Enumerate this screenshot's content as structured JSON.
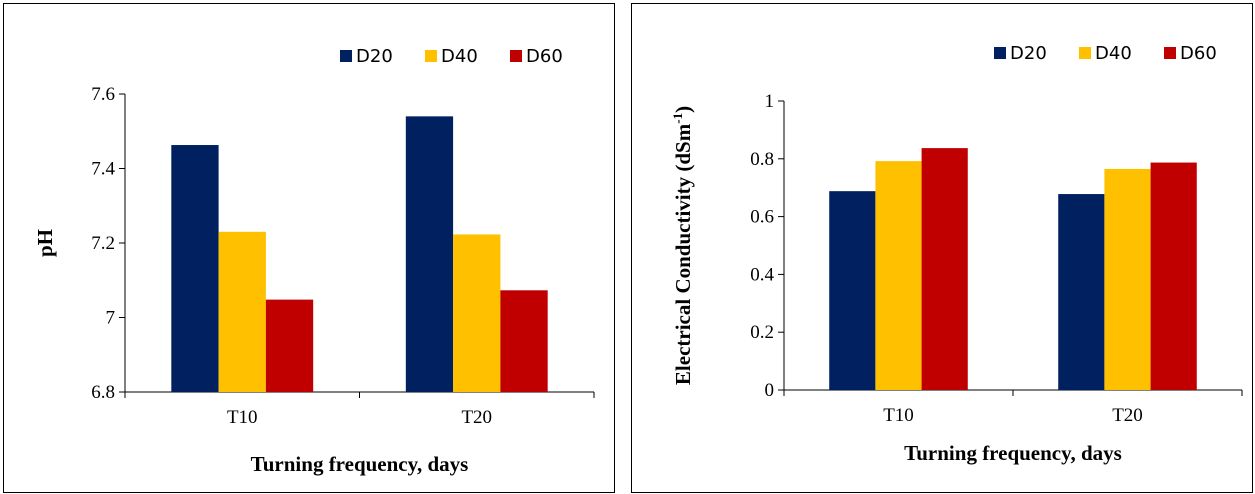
{
  "chart_data": [
    {
      "type": "bar",
      "categories": [
        "T10",
        "T20"
      ],
      "series": [
        {
          "name": "D20",
          "color": "#002060",
          "values": [
            7.463,
            7.54
          ]
        },
        {
          "name": "D40",
          "color": "#FFC000",
          "values": [
            7.23,
            7.223
          ]
        },
        {
          "name": "D60",
          "color": "#C00000",
          "values": [
            7.048,
            7.073
          ]
        }
      ],
      "xlabel": "Turning frequency, days",
      "ylabel": "pH",
      "ylim": [
        6.8,
        7.6
      ],
      "yticks": [
        "6.8",
        "7",
        "7.2",
        "7.4",
        "7.6"
      ],
      "ytick_values": [
        6.8,
        7.0,
        7.2,
        7.4,
        7.6
      ],
      "grid": false,
      "legend_position": "top-right"
    },
    {
      "type": "bar",
      "categories": [
        "T10",
        "T20"
      ],
      "series": [
        {
          "name": "D20",
          "color": "#002060",
          "values": [
            0.688,
            0.678
          ]
        },
        {
          "name": "D40",
          "color": "#FFC000",
          "values": [
            0.792,
            0.765
          ]
        },
        {
          "name": "D60",
          "color": "#C00000",
          "values": [
            0.837,
            0.787
          ]
        }
      ],
      "xlabel": "Turning frequency, days",
      "ylabel": "Electrical Conductivity (dSm",
      "ylabel_superscript": "-1",
      "ylabel_suffix": ")",
      "ylim": [
        0,
        1
      ],
      "yticks": [
        "0",
        "0.2",
        "0.4",
        "0.6",
        "0.8",
        "1"
      ],
      "ytick_values": [
        0,
        0.2,
        0.4,
        0.6,
        0.8,
        1.0
      ],
      "grid": false,
      "legend_position": "top-right"
    }
  ]
}
